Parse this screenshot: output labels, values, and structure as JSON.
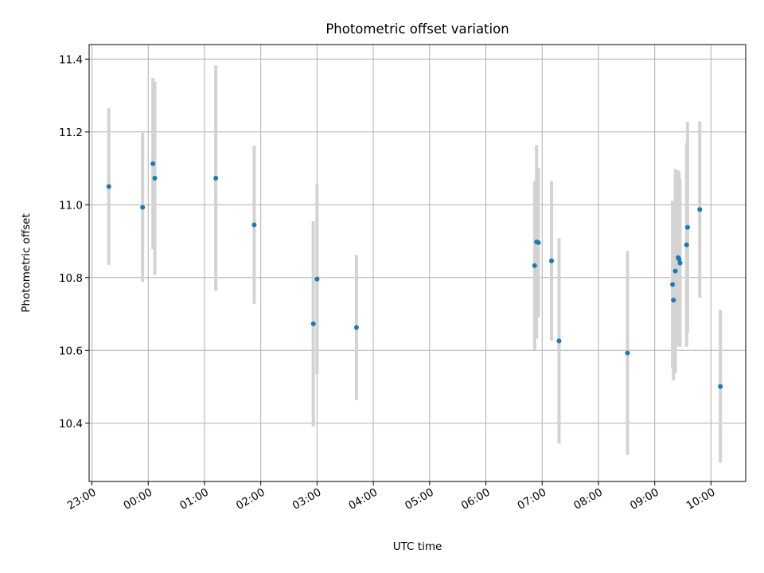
{
  "chart_data": {
    "type": "scatter",
    "title": "Photometric offset variation",
    "xlabel": "UTC time",
    "ylabel": "Photometric offset",
    "x_ticks": [
      "23:00",
      "00:00",
      "01:00",
      "02:00",
      "03:00",
      "04:00",
      "05:00",
      "06:00",
      "07:00",
      "08:00",
      "09:00",
      "10:00"
    ],
    "y_ticks": [
      10.4,
      10.6,
      10.8,
      11.0,
      11.2,
      11.4
    ],
    "xlim": [
      "22:57",
      "10:37"
    ],
    "ylim": [
      10.24,
      11.44
    ],
    "grid": true,
    "point_color": "#1f77b4",
    "errorbar_color": "#d3d3d3",
    "points": [
      {
        "t": "23:18",
        "y": 11.05,
        "err": 0.215
      },
      {
        "t": "23:54",
        "y": 10.993,
        "err": 0.205
      },
      {
        "t": "00:05",
        "y": 11.113,
        "err": 0.235
      },
      {
        "t": "00:07",
        "y": 11.073,
        "err": 0.265
      },
      {
        "t": "01:12",
        "y": 11.073,
        "err": 0.31
      },
      {
        "t": "01:53",
        "y": 10.945,
        "err": 0.217
      },
      {
        "t": "02:56",
        "y": 10.673,
        "err": 0.282
      },
      {
        "t": "03:00",
        "y": 10.796,
        "err": 0.262
      },
      {
        "t": "03:42",
        "y": 10.663,
        "err": 0.199
      },
      {
        "t": "06:52",
        "y": 10.833,
        "err": 0.232
      },
      {
        "t": "06:54",
        "y": 10.898,
        "err": 0.266
      },
      {
        "t": "06:56",
        "y": 10.896,
        "err": 0.205
      },
      {
        "t": "07:10",
        "y": 10.846,
        "err": 0.219
      },
      {
        "t": "07:18",
        "y": 10.626,
        "err": 0.282
      },
      {
        "t": "08:31",
        "y": 10.593,
        "err": 0.28
      },
      {
        "t": "09:19",
        "y": 10.781,
        "err": 0.23
      },
      {
        "t": "09:20",
        "y": 10.738,
        "err": 0.22
      },
      {
        "t": "09:22",
        "y": 10.818,
        "err": 0.28
      },
      {
        "t": "09:25",
        "y": 10.855,
        "err": 0.24
      },
      {
        "t": "09:26",
        "y": 10.85,
        "err": 0.24
      },
      {
        "t": "09:27",
        "y": 10.84,
        "err": 0.23
      },
      {
        "t": "09:34",
        "y": 10.89,
        "err": 0.28
      },
      {
        "t": "09:35",
        "y": 10.938,
        "err": 0.29
      },
      {
        "t": "09:48",
        "y": 10.987,
        "err": 0.242
      },
      {
        "t": "10:10",
        "y": 10.501,
        "err": 0.21
      }
    ]
  }
}
